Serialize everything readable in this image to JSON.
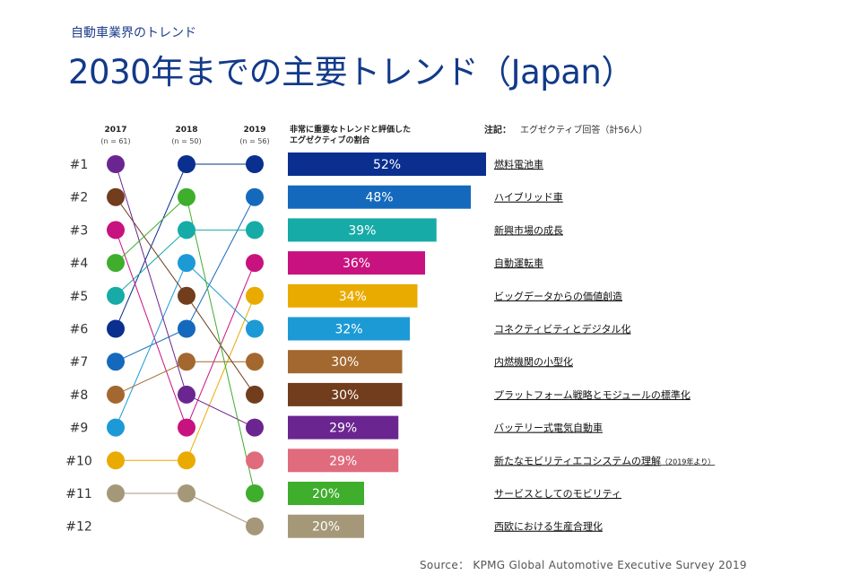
{
  "header": {
    "subtitle": "自動車業界のトレンド",
    "title": "2030年までの主要トレンド（Japan）"
  },
  "chart_data": {
    "type": "bar",
    "years": [
      {
        "year": "2017",
        "n": "(n = 61)"
      },
      {
        "year": "2018",
        "n": "(n = 50)"
      },
      {
        "year": "2019",
        "n": "(n = 56)"
      }
    ],
    "bar_header": "非常に重要なトレンドと評価した エグゼクティブの割合",
    "note_label": "注記：",
    "note_text": "エグゼクティブ回答（計56人）",
    "rank_labels": [
      "#1",
      "#2",
      "#3",
      "#4",
      "#5",
      "#6",
      "#7",
      "#8",
      "#9",
      "#10",
      "#11",
      "#12"
    ],
    "value_labels": [
      "52%",
      "48%",
      "39%",
      "36%",
      "34%",
      "32%",
      "30%",
      "30%",
      "29%",
      "29%",
      "20%",
      "20%"
    ],
    "trends": [
      {
        "name": "燃料電池車",
        "value": 52,
        "color": "#0a2f8f",
        "rank_2017": 6,
        "rank_2018": 1,
        "rank_2019": 1
      },
      {
        "name": "ハイブリッド車",
        "value": 48,
        "color": "#1569bd",
        "rank_2017": 7,
        "rank_2018": 6,
        "rank_2019": 2
      },
      {
        "name": "新興市場の成長",
        "value": 39,
        "color": "#16aba7",
        "rank_2017": 5,
        "rank_2018": 3,
        "rank_2019": 3
      },
      {
        "name": "自動運転車",
        "value": 36,
        "color": "#c8127f",
        "rank_2017": 3,
        "rank_2018": 9,
        "rank_2019": 4
      },
      {
        "name": "ビッグデータからの価値創造",
        "value": 34,
        "color": "#eaab00",
        "rank_2017": 10,
        "rank_2018": 10,
        "rank_2019": 5
      },
      {
        "name": "コネクティビティとデジタル化",
        "value": 32,
        "color": "#1c9ad6",
        "rank_2017": 9,
        "rank_2018": 4,
        "rank_2019": 6
      },
      {
        "name": "内燃機関の小型化",
        "value": 30,
        "color": "#a3682f",
        "rank_2017": 8,
        "rank_2018": 7,
        "rank_2019": 7
      },
      {
        "name": "プラットフォーム戦略とモジュールの標準化",
        "value": 30,
        "color": "#723d1d",
        "rank_2017": 2,
        "rank_2018": 5,
        "rank_2019": 8
      },
      {
        "name": "バッテリー式電気自動車",
        "value": 29,
        "color": "#6b2590",
        "rank_2017": 1,
        "rank_2018": 8,
        "rank_2019": 9
      },
      {
        "name": "新たなモビリティエコシステムの理解",
        "name_suffix": "（2019年より）",
        "value": 29,
        "color": "#e06b7c",
        "rank_2017": null,
        "rank_2018": null,
        "rank_2019": 10
      },
      {
        "name": "サービスとしてのモビリティ",
        "value": 20,
        "color": "#3eae2c",
        "rank_2017": 4,
        "rank_2018": 2,
        "rank_2019": 11
      },
      {
        "name": "西欧における生産合理化",
        "value": 20,
        "color": "#a49878",
        "rank_2017": 11,
        "rank_2018": 11,
        "rank_2019": 12
      }
    ],
    "xlim": [
      0,
      52
    ]
  },
  "footer": {
    "source": "Source： KPMG Global Automotive Executive Survey 2019"
  }
}
